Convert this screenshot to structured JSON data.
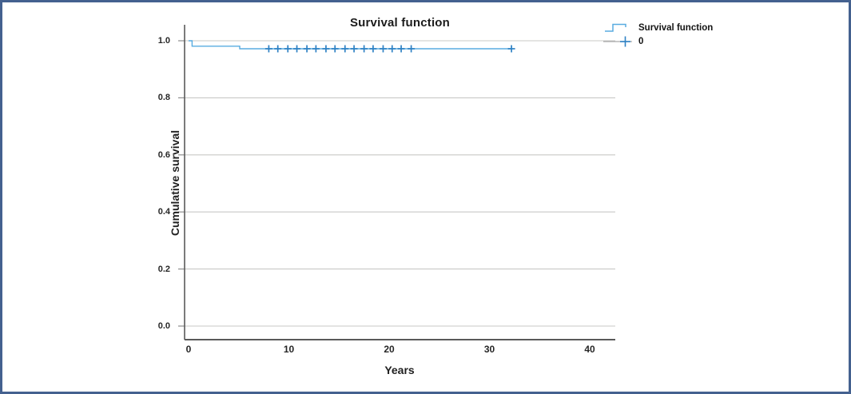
{
  "frame": {
    "border_color": "#44618f"
  },
  "chart_data": {
    "type": "line",
    "subtype": "kaplan-meier-step",
    "title": "Survival function",
    "xlabel": "Years",
    "ylabel": "Cumulative survival",
    "xticks": [
      "0",
      "10",
      "20",
      "30",
      "40"
    ],
    "yticks": [
      "0.0",
      "0.2",
      "0.4",
      "0.6",
      "0.8",
      "1.0"
    ],
    "xlim": [
      0,
      42.5
    ],
    "ylim": [
      0.0,
      1.06
    ],
    "grid": "horizontal-only",
    "legend_position": "top-right-outside",
    "colors": {
      "curve": "#58ace0",
      "censor": "#2e81c4",
      "gridline": "#c9c8c6",
      "axis": "#5a5a5a",
      "legend_censor_line": "#a9a9a9"
    },
    "series": [
      {
        "name": "Survival function",
        "style": "step",
        "color": "#58ace0",
        "points": [
          {
            "x": 0.0,
            "y": 1.0
          },
          {
            "x": 0.35,
            "y": 0.981
          },
          {
            "x": 5.1,
            "y": 0.972
          },
          {
            "x": 32.2,
            "y": 0.972
          }
        ]
      }
    ],
    "censors": {
      "name": "0",
      "color": "#2e81c4",
      "y": 0.972,
      "x": [
        8.0,
        8.9,
        9.9,
        10.8,
        11.8,
        12.7,
        13.7,
        14.6,
        15.6,
        16.5,
        17.5,
        18.4,
        19.4,
        20.3,
        21.2,
        22.2,
        32.2
      ]
    },
    "legend": [
      {
        "label": "Survival function",
        "marker": "step-line"
      },
      {
        "label": "0",
        "marker": "censor-plus"
      }
    ]
  }
}
